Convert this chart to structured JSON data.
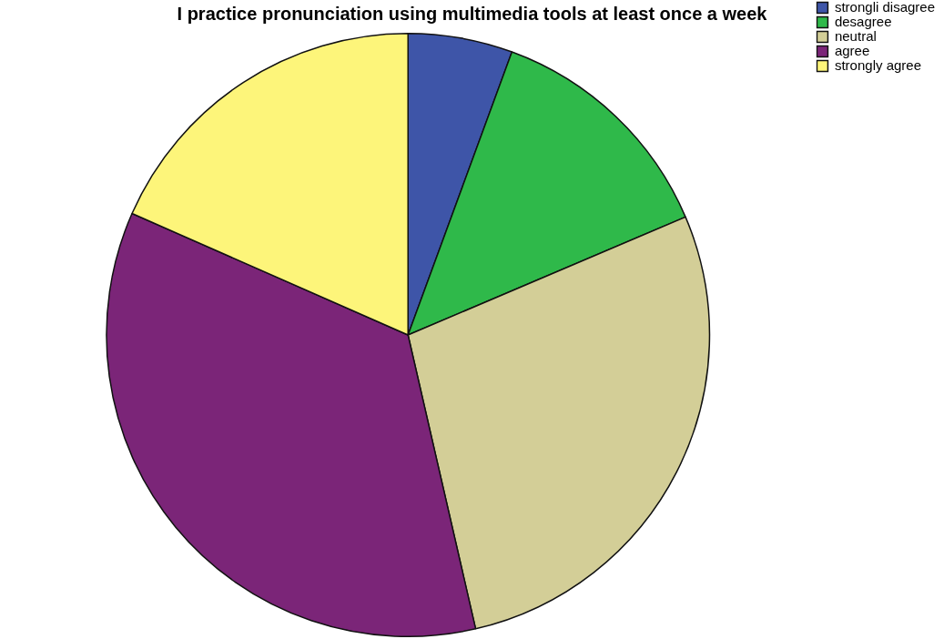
{
  "chart_data": {
    "type": "pie",
    "title": "I practice pronunciation using multimedia tools at least once a week",
    "categories": [
      "strongli disagree",
      "desagree",
      "neutral",
      "agree",
      "strongly agree"
    ],
    "values": [
      5.6,
      13.0,
      27.8,
      35.2,
      18.4
    ],
    "colors": [
      "#3e55a8",
      "#2fb94a",
      "#d3ce97",
      "#7b2578",
      "#fdf57a"
    ],
    "legend": "top right"
  }
}
